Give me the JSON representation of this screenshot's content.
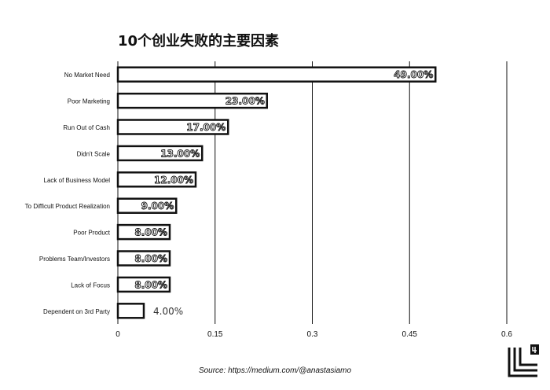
{
  "chart_data": {
    "type": "bar",
    "orientation": "horizontal",
    "title": "10个创业失败的主要因素",
    "xlabel": "",
    "ylabel": "",
    "xlim": [
      0,
      0.6
    ],
    "x_ticks": [
      0,
      0.15,
      0.3,
      0.45,
      0.6
    ],
    "x_tick_labels": [
      "0",
      "0.15",
      "0.3",
      "0.45",
      "0.6"
    ],
    "grid": true,
    "categories": [
      "No Market Need",
      "Poor Marketing",
      "Run Out of Cash",
      "Didn't Scale",
      "Lack of Business Model",
      "To Difficult Product Realization",
      "Poor Product",
      "Problems Team/Investors",
      "Lack of Focus",
      "Dependent on 3rd Party"
    ],
    "values": [
      0.49,
      0.23,
      0.17,
      0.13,
      0.12,
      0.09,
      0.08,
      0.08,
      0.08,
      0.04
    ],
    "data_labels": [
      "49.00%",
      "23.00%",
      "17.00%",
      "13.00%",
      "12.00%",
      "9.00%",
      "8.00%",
      "8.00%",
      "8.00%",
      "4.00%"
    ],
    "bar_color": "#ffffff",
    "bar_edge_color": "#111111",
    "source": "Source: https://medium.com/@anastasiamo"
  }
}
